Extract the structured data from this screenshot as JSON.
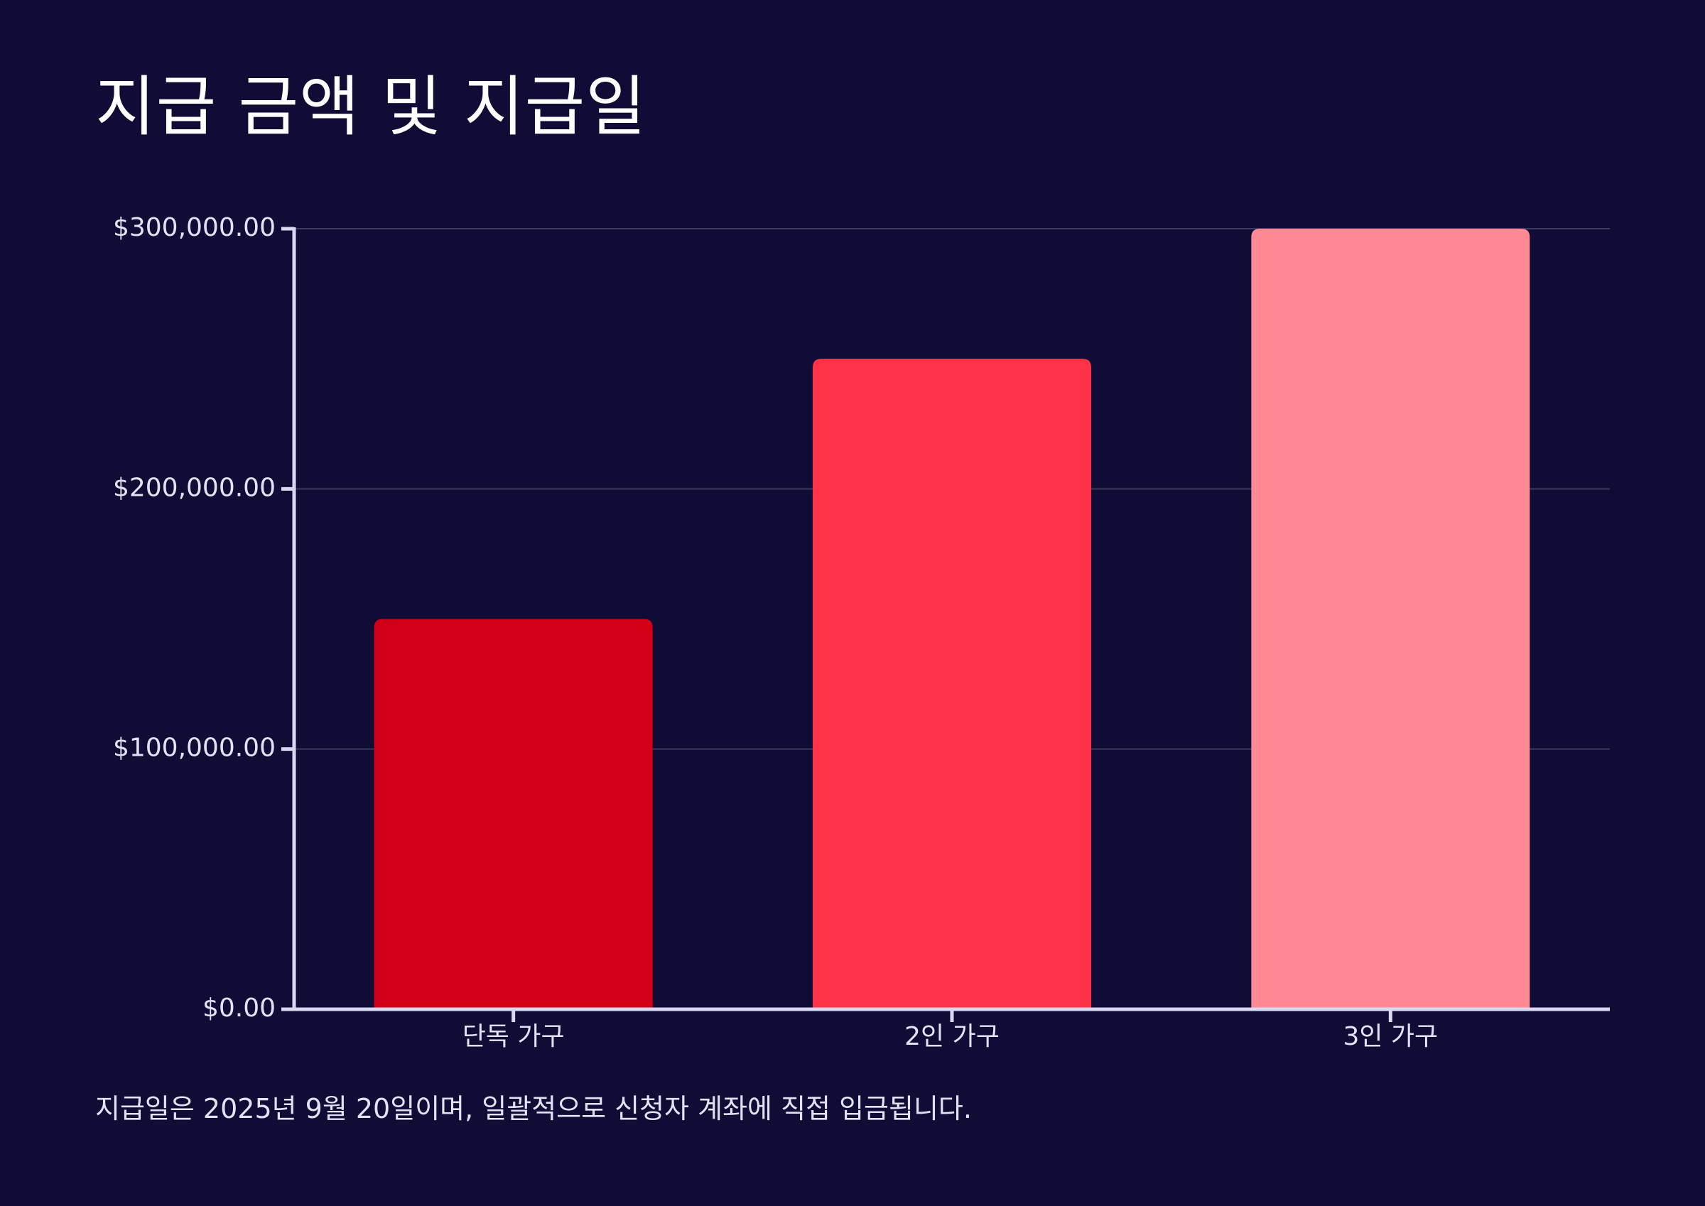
{
  "title": "지급 금액 및 지급일",
  "footnote": "지급일은 2025년 9월 20일이며, 일괄적으로 신청자 계좌에 직접 입금됩니다.",
  "colors": {
    "background": "#100c35",
    "axis": "#d8d8f0",
    "grid": "#3c3a5e",
    "text": "#e2e2f4"
  },
  "chart_data": {
    "type": "bar",
    "categories": [
      "단독 가구",
      "2인 가구",
      "3인 가구"
    ],
    "values": [
      150000,
      250000,
      300000
    ],
    "bar_colors": [
      "#d20016",
      "#ff3347",
      "#ff8a95"
    ],
    "y_ticks": [
      0,
      100000,
      200000,
      300000
    ],
    "y_tick_labels": [
      "$0.00",
      "$100,000.00",
      "$200,000.00",
      "$300,000.00"
    ],
    "ylim": [
      0,
      300000
    ],
    "grid": true,
    "xlabel": "",
    "ylabel": ""
  }
}
